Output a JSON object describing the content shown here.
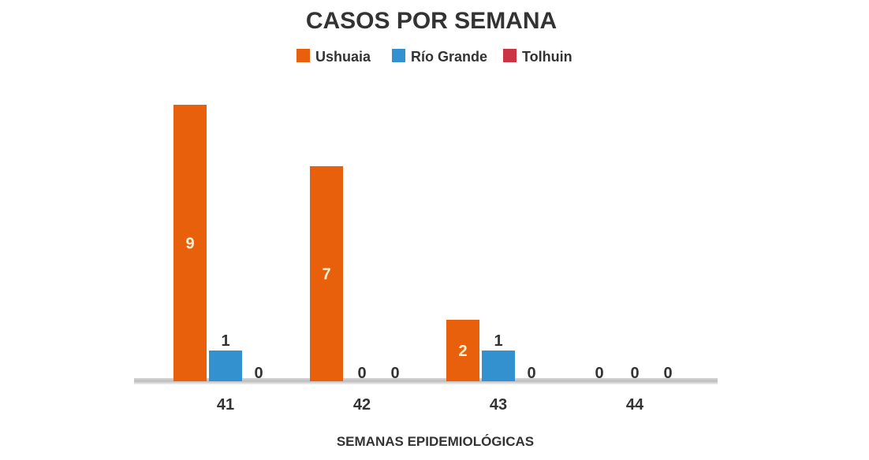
{
  "chart_data": {
    "type": "bar",
    "title": "CASOS POR SEMANA",
    "xlabel": "SEMANAS EPIDEMIOLÓGICAS",
    "ylabel": "",
    "categories": [
      "41",
      "42",
      "43",
      "44"
    ],
    "series": [
      {
        "name": "Ushuaia",
        "color": "#e8600c",
        "values": [
          9,
          7,
          2,
          0
        ]
      },
      {
        "name": "Río Grande",
        "color": "#3391cf",
        "values": [
          1,
          0,
          1,
          0
        ]
      },
      {
        "name": "Tolhuin",
        "color": "#cc3344",
        "values": [
          0,
          0,
          0,
          0
        ]
      }
    ],
    "ylim": [
      0,
      9
    ],
    "grid": false,
    "legend": "top-center",
    "data_labels": true,
    "inside_label_color": "#fff3d6",
    "outside_label_color": "#333333"
  }
}
